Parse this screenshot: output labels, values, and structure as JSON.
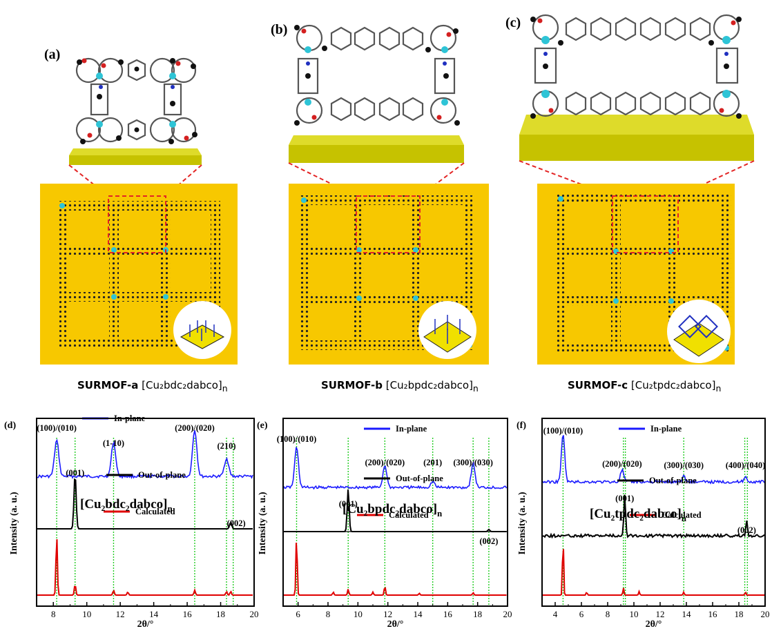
{
  "top_panels": [
    {
      "letter": "(a)",
      "caption_bold": "SURMOF-a",
      "caption_rest": " [Cu₂bdc₂dabco]",
      "caption_sub": "n",
      "inset_icon": "grid-surface-icon"
    },
    {
      "letter": "(b)",
      "caption_bold": "SURMOF-b",
      "caption_rest": " [Cu₂bpdc₂dabco]",
      "caption_sub": "n",
      "inset_icon": "grid-surface-icon"
    },
    {
      "letter": "(c)",
      "caption_bold": "SURMOF-c",
      "caption_rest": " [Cu₂tpdc₂dabco]",
      "caption_sub": "n",
      "inset_icon": "grid-surface-icon"
    }
  ],
  "colors": {
    "in_plane": "#1a1aff",
    "out_of_plane": "#000000",
    "calculated": "#e00000",
    "guide": "#22cc22",
    "gold": "#f7c800",
    "substrate": "#c6c200",
    "copper": "#2ec4d6",
    "oxygen": "#d42020",
    "nitrogen": "#2030c0"
  },
  "chart_data": [
    {
      "panel": "(d)",
      "type": "line",
      "xlabel": "2θ/°",
      "ylabel": "Intensity (a. u.)",
      "xlim": [
        7,
        20
      ],
      "xticks": [
        8,
        10,
        12,
        14,
        16,
        18,
        20
      ],
      "formula": "[Cu₂bdc₂dabco]",
      "formula_sub": "n",
      "series": [
        {
          "name": "In-plane",
          "peaks": [
            [
              8.2,
              1.0
            ],
            [
              11.6,
              0.95
            ],
            [
              16.45,
              1.3
            ],
            [
              18.35,
              0.5
            ]
          ]
        },
        {
          "name": "Out-of-plane",
          "peaks": [
            [
              9.3,
              1.0
            ],
            [
              18.6,
              0.12
            ]
          ]
        },
        {
          "name": "Calculated",
          "peaks": [
            [
              8.2,
              1.0
            ],
            [
              9.3,
              0.18
            ],
            [
              11.6,
              0.08
            ],
            [
              12.45,
              0.05
            ],
            [
              16.45,
              0.08
            ],
            [
              18.35,
              0.06
            ],
            [
              18.6,
              0.06
            ]
          ]
        }
      ],
      "peak_labels": [
        {
          "text": "(100)/(010)",
          "x": 8.2
        },
        {
          "text": "(1-10)",
          "x": 11.6
        },
        {
          "text": "(200)/(020)",
          "x": 16.45
        },
        {
          "text": "(210)",
          "x": 18.35
        },
        {
          "text": "(001)",
          "x": 9.3
        },
        {
          "text": "(002)",
          "x": 18.6
        }
      ],
      "guides": [
        8.2,
        9.3,
        11.6,
        16.45,
        18.35,
        18.75
      ]
    },
    {
      "panel": "(e)",
      "type": "line",
      "xlabel": "2θ/°",
      "ylabel": "Intensity (a. u.)",
      "xlim": [
        5,
        20
      ],
      "xticks": [
        6,
        8,
        10,
        12,
        14,
        16,
        18,
        20
      ],
      "formula": "[Cu₂bpdc₂dabco]",
      "formula_sub": "n",
      "series": [
        {
          "name": "In-plane",
          "peaks": [
            [
              5.9,
              1.0
            ],
            [
              11.8,
              0.55
            ],
            [
              15.0,
              0.15
            ],
            [
              17.7,
              0.6
            ]
          ]
        },
        {
          "name": "Out-of-plane",
          "peaks": [
            [
              9.35,
              1.0
            ],
            [
              18.75,
              0.05
            ]
          ]
        },
        {
          "name": "Calculated",
          "peaks": [
            [
              5.9,
              1.0
            ],
            [
              8.35,
              0.05
            ],
            [
              9.35,
              0.1
            ],
            [
              11.0,
              0.05
            ],
            [
              11.8,
              0.15
            ],
            [
              14.1,
              0.03
            ],
            [
              17.7,
              0.04
            ]
          ]
        }
      ],
      "peak_labels": [
        {
          "text": "(100)/(010)",
          "x": 5.9
        },
        {
          "text": "(200)/(020)",
          "x": 11.8
        },
        {
          "text": "(201)",
          "x": 15.0
        },
        {
          "text": "(300)/(030)",
          "x": 17.7
        },
        {
          "text": "(001)",
          "x": 9.35
        },
        {
          "text": "(002)",
          "x": 18.75
        }
      ],
      "guides": [
        5.9,
        9.35,
        11.8,
        15.0,
        17.7,
        18.75
      ]
    },
    {
      "panel": "(f)",
      "type": "line",
      "xlabel": "2θ/°",
      "ylabel": "Intensity (a. u.)",
      "xlim": [
        3,
        20
      ],
      "xticks": [
        4,
        6,
        8,
        10,
        12,
        14,
        16,
        18,
        20
      ],
      "formula": "[Cu₂tpdc₂dabco]",
      "formula_sub": "n",
      "series": [
        {
          "name": "In-plane",
          "peaks": [
            [
              4.6,
              1.0
            ],
            [
              9.1,
              0.25
            ],
            [
              13.8,
              0.12
            ],
            [
              18.5,
              0.1
            ]
          ]
        },
        {
          "name": "Out-of-plane",
          "peaks": [
            [
              9.3,
              1.0
            ],
            [
              18.6,
              0.35
            ]
          ]
        },
        {
          "name": "Calculated",
          "peaks": [
            [
              4.6,
              1.0
            ],
            [
              6.4,
              0.05
            ],
            [
              9.2,
              0.12
            ],
            [
              10.4,
              0.06
            ],
            [
              13.8,
              0.05
            ],
            [
              18.5,
              0.05
            ]
          ]
        }
      ],
      "peak_labels": [
        {
          "text": "(100)/(010)",
          "x": 4.6
        },
        {
          "text": "(200)/(020)",
          "x": 9.1
        },
        {
          "text": "(300)/(030)",
          "x": 13.8
        },
        {
          "text": "(400)/(040)",
          "x": 18.5
        },
        {
          "text": "(001)",
          "x": 9.3
        },
        {
          "text": "(002)",
          "x": 18.6
        }
      ],
      "guides": [
        4.6,
        9.2,
        9.35,
        13.8,
        18.45,
        18.65
      ]
    }
  ]
}
